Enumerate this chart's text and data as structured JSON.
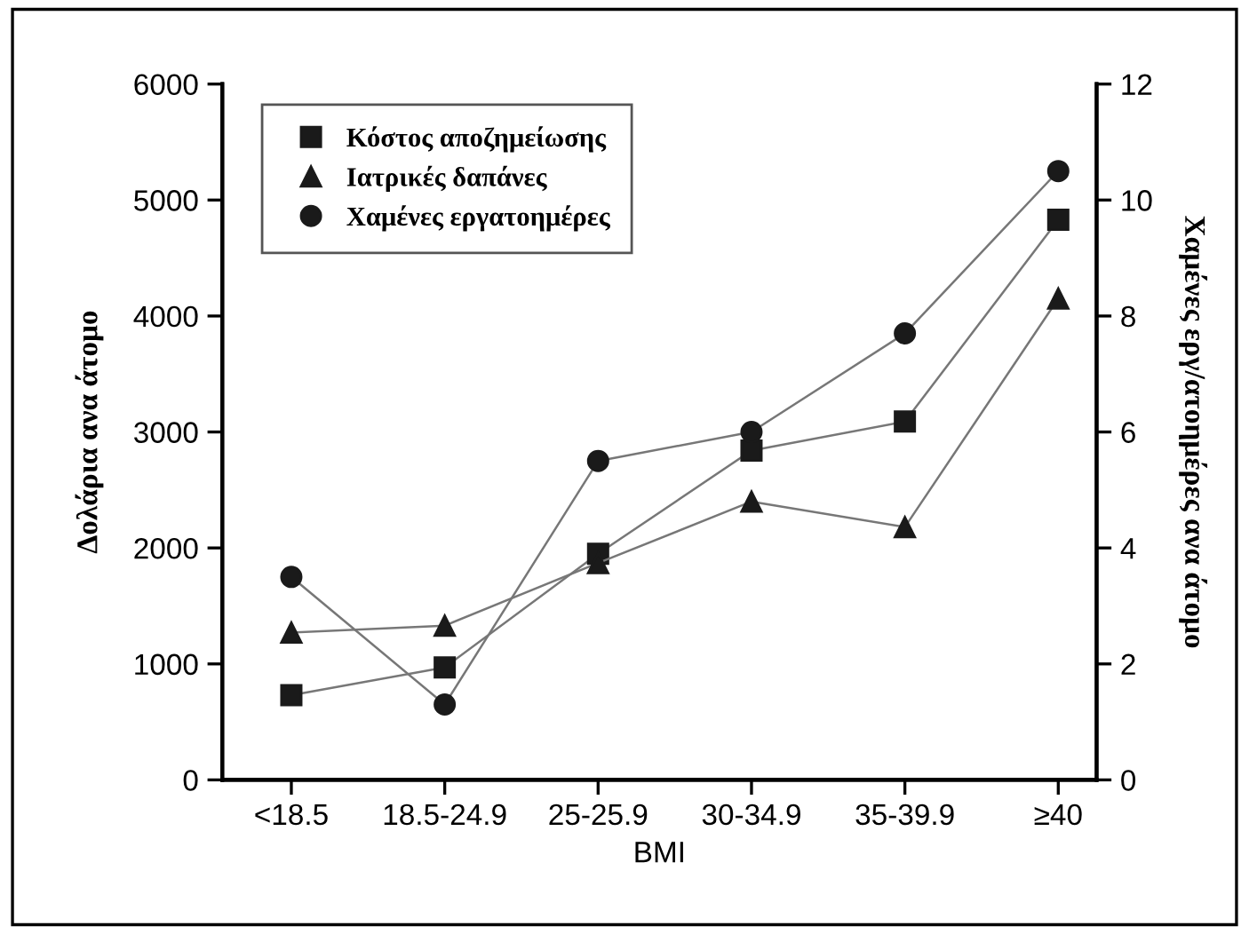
{
  "chart_data": {
    "type": "line",
    "xlabel": "BMI",
    "ylabel": "Δολάρια ανα άτομο",
    "y2label": "Χαμένες εργ/ατοημέρες ανα άτομο",
    "categories": [
      "<18.5",
      "18.5-24.9",
      "25-25.9",
      "30-34.9",
      "35-39.9",
      "≥40"
    ],
    "series": [
      {
        "name": "Κόστος αποζημείωσης",
        "color": "#1a1a1a",
        "marker": "square",
        "values": [
          730,
          970,
          1950,
          2840,
          3090,
          4830
        ]
      },
      {
        "name": "Ιατρικές δαπάνες",
        "color": "#1a1a1a",
        "marker": "triangle",
        "values": [
          1270,
          1330,
          1870,
          2400,
          2180,
          4150
        ]
      },
      {
        "name": "Χαμένες εργατοημέρες",
        "color": "#1a1a1a",
        "marker": "circle",
        "axis": "y2",
        "values": [
          3.5,
          1.3,
          5.5,
          6.0,
          7.7,
          10.5
        ]
      }
    ],
    "ylim": [
      0,
      6000
    ],
    "yticks": [
      0,
      1000,
      2000,
      3000,
      4000,
      5000,
      6000
    ],
    "y2lim": [
      0,
      12
    ],
    "y2ticks": [
      0,
      2,
      4,
      6,
      8,
      10,
      12
    ],
    "grid": false,
    "legend": "top left",
    "line_style": "solid"
  }
}
